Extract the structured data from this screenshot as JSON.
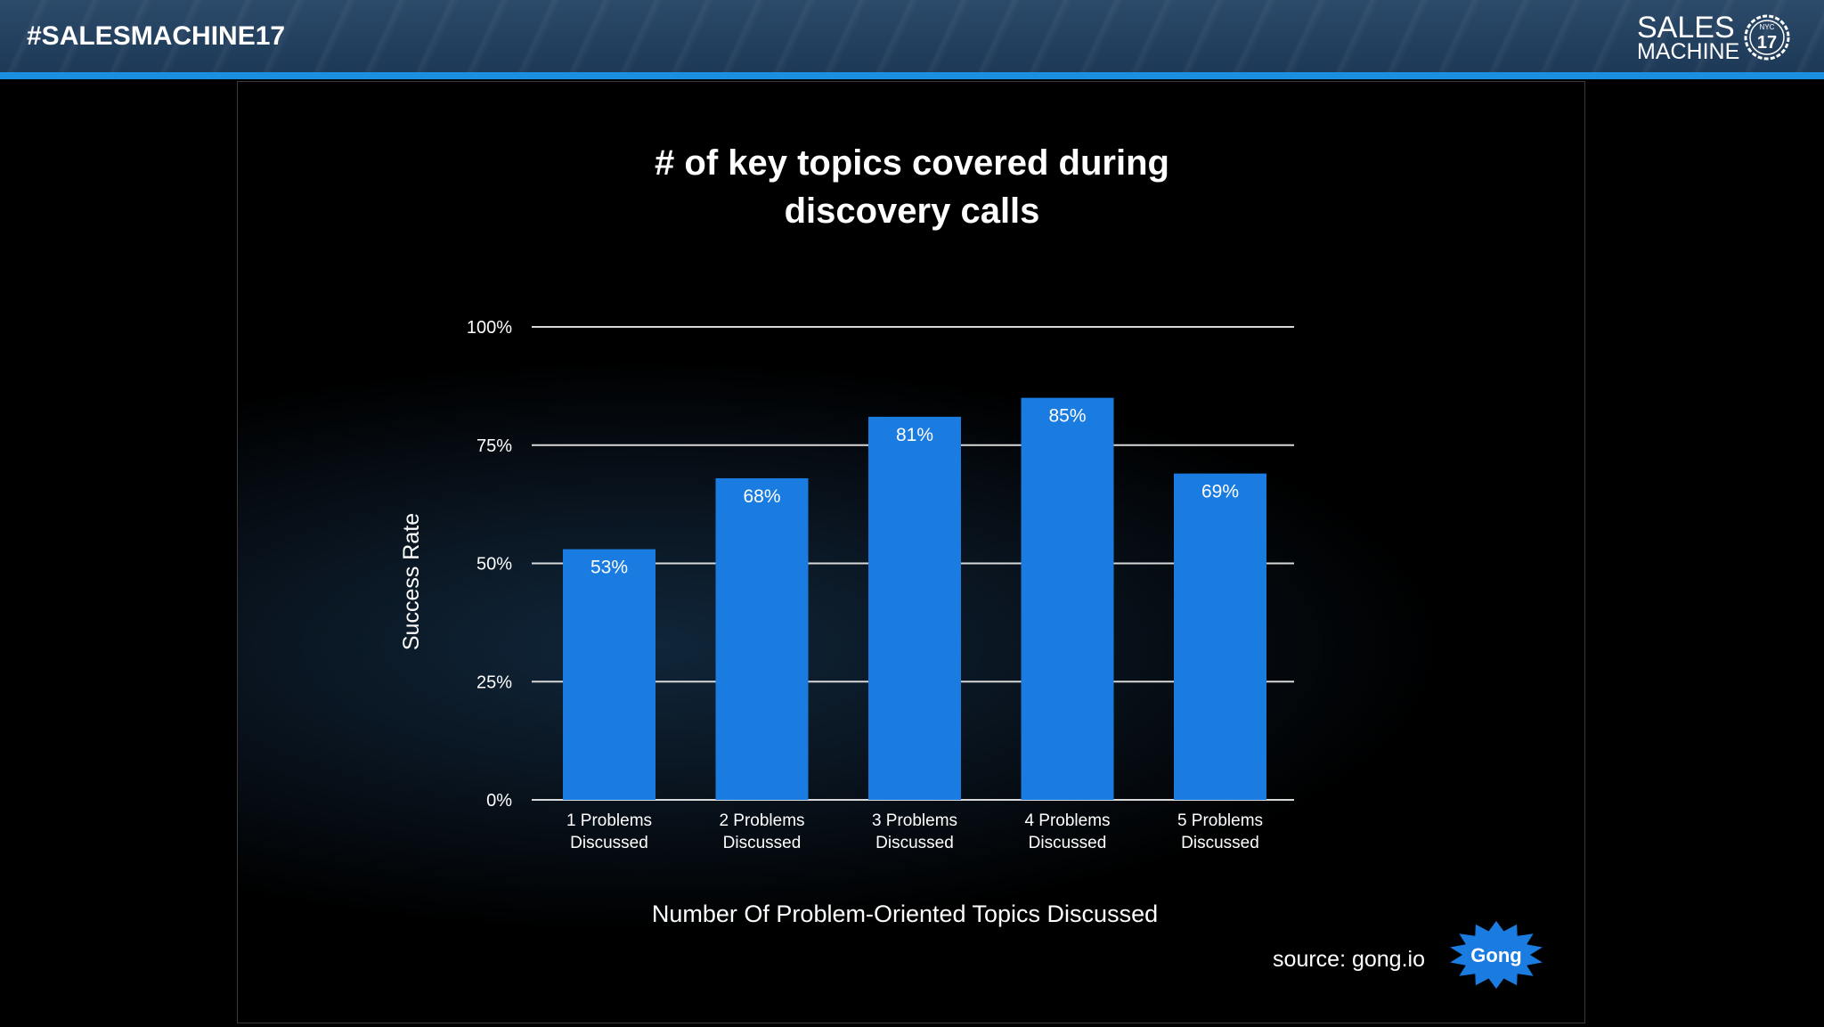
{
  "header": {
    "hashtag": "#SALESMACHINE17",
    "logo_line1": "SALES",
    "logo_line2": "MACHINE",
    "logo_badge_top": "NYC",
    "logo_badge_number": "17"
  },
  "colors": {
    "bar": "#1a7be0",
    "header_bar": "#1a8fe0",
    "gong_badge": "#1a7be0"
  },
  "chart_data": {
    "type": "bar",
    "title_lines": [
      "# of key topics covered during",
      "discovery calls"
    ],
    "categories": [
      [
        "1 Problems",
        "Discussed"
      ],
      [
        "2 Problems",
        "Discussed"
      ],
      [
        "3 Problems",
        "Discussed"
      ],
      [
        "4 Problems",
        "Discussed"
      ],
      [
        "5 Problems",
        "Discussed"
      ]
    ],
    "values": [
      53,
      68,
      81,
      85,
      69
    ],
    "value_labels": [
      "53%",
      "68%",
      "81%",
      "85%",
      "69%"
    ],
    "ylabel": "Success Rate",
    "xlabel": "Number Of Problem-Oriented Topics Discussed",
    "ylim": [
      0,
      100
    ],
    "yticks": [
      0,
      25,
      50,
      75,
      100
    ],
    "ytick_labels": [
      "0%",
      "25%",
      "50%",
      "75%",
      "100%"
    ],
    "grid": true
  },
  "source": {
    "text": "source: gong.io",
    "badge_label": "Gong"
  }
}
